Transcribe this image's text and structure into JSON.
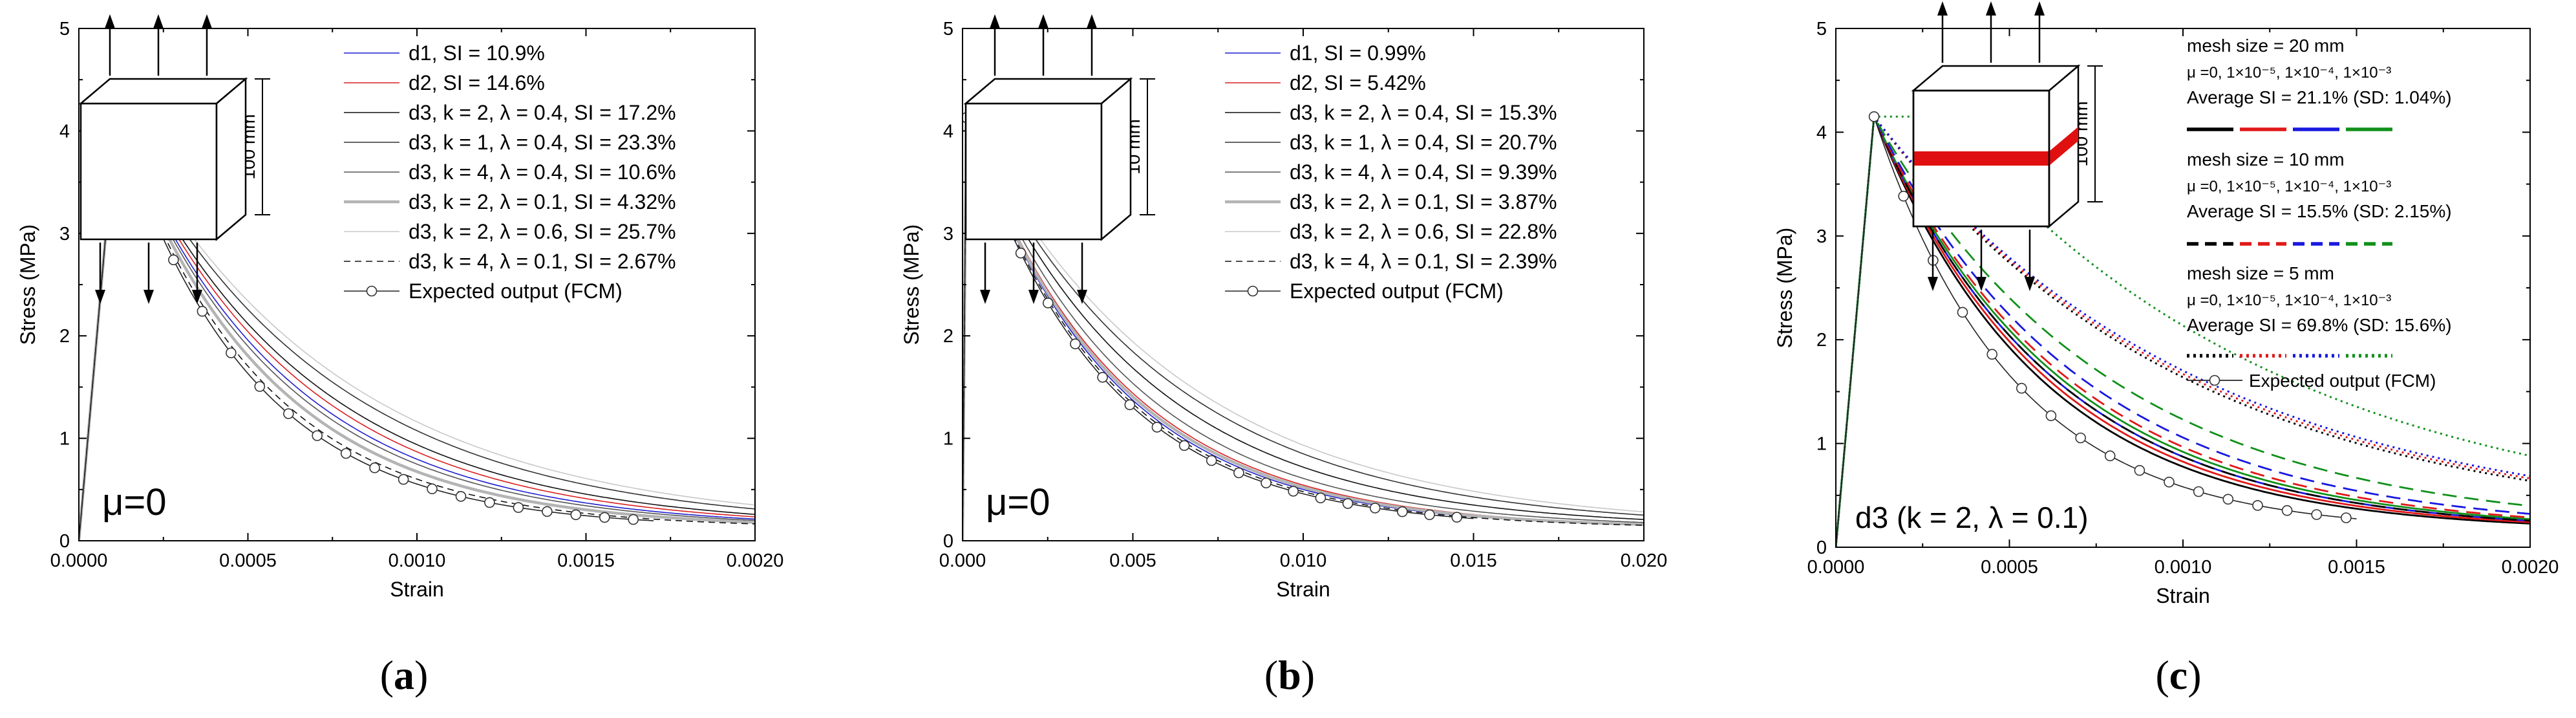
{
  "chart_data": [
    {
      "type": "line",
      "panel_label": "a",
      "xlabel": "Strain",
      "ylabel": "Stress (MPa)",
      "xlim": [
        0,
        0.002
      ],
      "ylim": [
        0,
        5
      ],
      "xticks": [
        "0.0000",
        "0.0005",
        "0.0010",
        "0.0015",
        "0.0020"
      ],
      "yticks": [
        "0",
        "1",
        "2",
        "3",
        "4",
        "5"
      ],
      "annotation": "μ=0",
      "inset": {
        "type": "cube",
        "dimension_label": "100 mm",
        "band": false
      },
      "peak": {
        "strain": 0.00011,
        "stress": 4.13
      },
      "end_stress": 0.12,
      "series": [
        {
          "name": "d1, SI = 10.9%",
          "color": "#1f1fd0",
          "width": 1.6,
          "dash": "",
          "k": 0.0005,
          "end": 0.002
        },
        {
          "name": "d2, SI = 14.6%",
          "color": "#d92020",
          "width": 1.6,
          "dash": "",
          "k": 0.00053,
          "end": 0.002
        },
        {
          "name": "d3, k = 2, λ = 0.4, SI = 17.2%",
          "color": "#111111",
          "width": 1.6,
          "dash": "",
          "k": 0.00056,
          "end": 0.002
        },
        {
          "name": "d3, k = 1, λ = 0.4, SI = 23.3%",
          "color": "#333333",
          "width": 1.6,
          "dash": "",
          "k": 0.00062,
          "end": 0.002
        },
        {
          "name": "d3, k = 4, λ = 0.4, SI = 10.6%",
          "color": "#555555",
          "width": 1.6,
          "dash": "",
          "k": 0.00048,
          "end": 0.002
        },
        {
          "name": "d3, k = 2, λ = 0.1, SI = 4.32%",
          "color": "#b4b4b4",
          "width": 4.5,
          "dash": "",
          "k": 0.00045,
          "end": 0.002
        },
        {
          "name": "d3, k = 2, λ = 0.6, SI = 25.7%",
          "color": "#c8c8c8",
          "width": 1.6,
          "dash": "",
          "k": 0.00066,
          "end": 0.002
        },
        {
          "name": "d3, k = 4, λ = 0.1, SI = 2.67%",
          "color": "#111111",
          "width": 1.6,
          "dash": "10,7",
          "k": 0.00042,
          "end": 0.002
        },
        {
          "name": "Expected output (FCM)",
          "color": "#222222",
          "width": 1.6,
          "dash": "",
          "marker": "circle",
          "k": 0.0004,
          "end": 0.0017,
          "marker_step": 8.5e-05
        }
      ]
    },
    {
      "type": "line",
      "panel_label": "b",
      "xlabel": "Strain",
      "ylabel": "Stress (MPa)",
      "xlim": [
        0,
        0.02
      ],
      "ylim": [
        0,
        5
      ],
      "xticks": [
        "0.000",
        "0.005",
        "0.010",
        "0.015",
        "0.020"
      ],
      "yticks": [
        "0",
        "1",
        "2",
        "3",
        "4",
        "5"
      ],
      "annotation": "μ=0",
      "inset": {
        "type": "cube",
        "dimension_label": "10 mm",
        "band": false
      },
      "peak": {
        "strain": 0.00011,
        "stress": 4.13
      },
      "end_stress": 0.12,
      "series": [
        {
          "name": "d1, SI = 0.99%",
          "color": "#1f1fd0",
          "width": 1.6,
          "dash": "",
          "k": 0.0042,
          "end": 0.02
        },
        {
          "name": "d2, SI = 5.42%",
          "color": "#d92020",
          "width": 1.6,
          "dash": "",
          "k": 0.0044,
          "end": 0.02
        },
        {
          "name": "d3, k = 2, λ = 0.4, SI = 15.3%",
          "color": "#111111",
          "width": 1.6,
          "dash": "",
          "k": 0.0052,
          "end": 0.02
        },
        {
          "name": "d3, k = 1, λ = 0.4, SI = 20.7%",
          "color": "#333333",
          "width": 1.6,
          "dash": "",
          "k": 0.0058,
          "end": 0.02
        },
        {
          "name": "d3, k = 4, λ = 0.4, SI = 9.39%",
          "color": "#555555",
          "width": 1.6,
          "dash": "",
          "k": 0.0047,
          "end": 0.02
        },
        {
          "name": "d3, k = 2, λ = 0.1, SI = 3.87%",
          "color": "#b4b4b4",
          "width": 4.5,
          "dash": "",
          "k": 0.0043,
          "end": 0.02
        },
        {
          "name": "d3, k = 2, λ = 0.6, SI = 22.8%",
          "color": "#c8c8c8",
          "width": 1.6,
          "dash": "",
          "k": 0.0062,
          "end": 0.02
        },
        {
          "name": "d3, k = 4, λ = 0.1, SI = 2.39%",
          "color": "#111111",
          "width": 1.6,
          "dash": "10,7",
          "k": 0.0041,
          "end": 0.02
        },
        {
          "name": "Expected output (FCM)",
          "color": "#222222",
          "width": 1.6,
          "dash": "",
          "marker": "circle",
          "k": 0.004,
          "end": 0.015,
          "marker_step": 0.0008
        }
      ]
    },
    {
      "type": "line",
      "panel_label": "c",
      "xlabel": "Strain",
      "ylabel": "Stress (MPa)",
      "xlim": [
        0,
        0.002
      ],
      "ylim": [
        0,
        5
      ],
      "xticks": [
        "0.0000",
        "0.0005",
        "0.0010",
        "0.0015",
        "0.0020"
      ],
      "yticks": [
        "0",
        "1",
        "2",
        "3",
        "4",
        "5"
      ],
      "annotation": "d3 (k = 2, λ = 0.1)",
      "inset": {
        "type": "cube",
        "dimension_label": "100 mm",
        "band": true
      },
      "legend_groups": [
        {
          "title": "mesh size = 20 mm",
          "line2": "μ =0, 1×10⁻⁵, 1×10⁻⁴, 1×10⁻³",
          "line3": "Average SI = 21.1% (SD: 1.04%)",
          "style": "solid"
        },
        {
          "title": "mesh size = 10 mm",
          "line2": "μ =0, 1×10⁻⁵, 1×10⁻⁴, 1×10⁻³",
          "line3": "Average SI = 15.5% (SD: 2.15%)",
          "style": "dashed"
        },
        {
          "title": "mesh size = 5 mm",
          "line2": "μ =0, 1×10⁻⁵, 1×10⁻⁴, 1×10⁻³",
          "line3": "Average SI = 69.8% (SD: 15.6%)",
          "style": "dotted"
        }
      ],
      "legend_colors": [
        "#000000",
        "#e01818",
        "#1818e0",
        "#10901a"
      ],
      "fcm_label": "Expected output (FCM)",
      "peak": {
        "strain": 0.00011,
        "stress": 4.15
      },
      "end_stress": 0.15,
      "series": [
        {
          "name": "20 mm, μ = 0",
          "color": "#000000",
          "width": 2.8,
          "dash": "",
          "k": 0.00048,
          "end": 0.002
        },
        {
          "name": "20 mm, μ = 1×10⁻⁵",
          "color": "#e01818",
          "width": 2.8,
          "dash": "",
          "k": 0.0005,
          "end": 0.002
        },
        {
          "name": "20 mm, μ = 1×10⁻⁴",
          "color": "#1818e0",
          "width": 2.8,
          "dash": "",
          "k": 0.00052,
          "end": 0.002
        },
        {
          "name": "20 mm, μ = 1×10⁻³",
          "color": "#10901a",
          "width": 2.8,
          "dash": "",
          "k": 0.00054,
          "end": 0.002
        },
        {
          "name": "10 mm, μ = 0",
          "color": "#000000",
          "width": 2.8,
          "dash": "22,12",
          "k": 0.00052,
          "end": 0.002
        },
        {
          "name": "10 mm, μ = 1×10⁻⁵",
          "color": "#e01818",
          "width": 2.8,
          "dash": "22,12",
          "k": 0.00056,
          "end": 0.002
        },
        {
          "name": "10 mm, μ = 1×10⁻⁴",
          "color": "#1818e0",
          "width": 2.8,
          "dash": "22,12",
          "k": 0.0006,
          "end": 0.002
        },
        {
          "name": "10 mm, μ = 1×10⁻³",
          "color": "#10901a",
          "width": 2.8,
          "dash": "22,12",
          "k": 0.00068,
          "end": 0.002
        },
        {
          "name": "5 mm, μ = 0",
          "color": "#000000",
          "width": 3.0,
          "dash": "3,6",
          "k": 0.0009,
          "end": 0.002
        },
        {
          "name": "5 mm, μ = 1×10⁻⁵",
          "color": "#e01818",
          "width": 3.0,
          "dash": "3,6",
          "k": 0.00092,
          "end": 0.002
        },
        {
          "name": "5 mm, μ = 1×10⁻⁴",
          "color": "#1818e0",
          "width": 3.0,
          "dash": "3,6",
          "k": 0.00094,
          "end": 0.002
        },
        {
          "name": "5 mm, μ = 1×10⁻³",
          "color": "#10901a",
          "width": 3.0,
          "dash": "3,6",
          "k": 0.001,
          "end": 0.002,
          "plateau": [
            0.00011,
            0.0003,
            4.15
          ]
        },
        {
          "name": "Expected output (FCM)",
          "color": "#222222",
          "width": 1.6,
          "dash": "",
          "marker": "circle",
          "k": 0.0004,
          "end": 0.0015,
          "marker_step": 8.5e-05
        }
      ]
    }
  ]
}
